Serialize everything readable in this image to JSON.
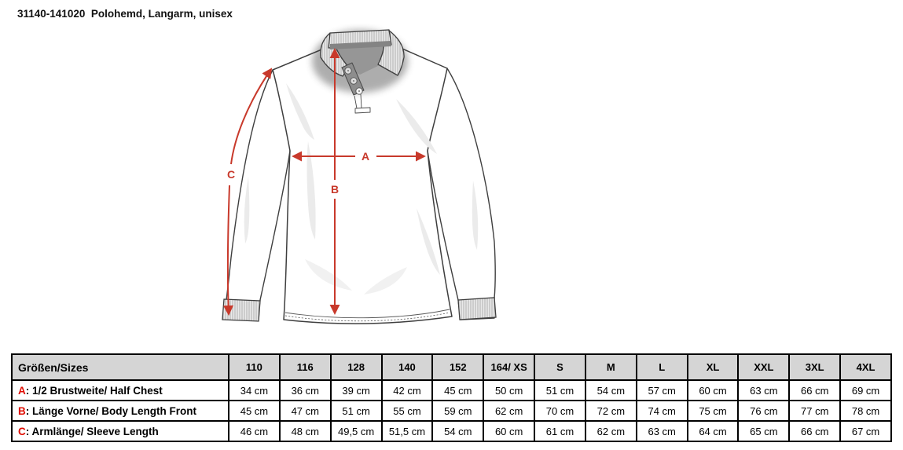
{
  "page": {
    "title": "31140-141020  Polohemd, Langarm, unisex"
  },
  "drawing": {
    "description": "long-sleeve polo shirt technical sketch",
    "labels": {
      "a": "A",
      "b": "B",
      "c": "C"
    },
    "arrow_color": "#c8392b"
  },
  "table": {
    "header_label": "Größen/Sizes",
    "separator": ": ",
    "sizes": [
      "110",
      "116",
      "128",
      "140",
      "152",
      "164/ XS",
      "S",
      "M",
      "L",
      "XL",
      "XXL",
      "3XL",
      "4XL"
    ],
    "rows": [
      {
        "key": "A",
        "label": "1/2 Brustweite/ Half Chest",
        "values": [
          "34 cm",
          "36 cm",
          "39 cm",
          "42 cm",
          "45 cm",
          "50 cm",
          "51 cm",
          "54 cm",
          "57 cm",
          "60 cm",
          "63 cm",
          "66 cm",
          "69 cm"
        ]
      },
      {
        "key": "B",
        "label": "Länge Vorne/ Body Length Front",
        "values": [
          "45 cm",
          "47 cm",
          "51 cm",
          "55 cm",
          "59 cm",
          "62 cm",
          "70 cm",
          "72 cm",
          "74 cm",
          "75 cm",
          "76 cm",
          "77 cm",
          "78 cm"
        ]
      },
      {
        "key": "C",
        "label": "Armlänge/ Sleeve Length",
        "values": [
          "46 cm",
          "48 cm",
          "49,5 cm",
          "51,5 cm",
          "54 cm",
          "60 cm",
          "61 cm",
          "62 cm",
          "63 cm",
          "64 cm",
          "65 cm",
          "66 cm",
          "67 cm"
        ]
      }
    ]
  }
}
